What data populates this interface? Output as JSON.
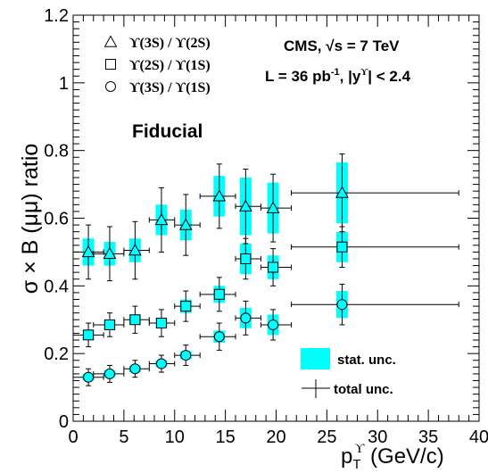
{
  "chart_data": {
    "type": "scatter",
    "annotation_experiment": "CMS, ",
    "annotation_sqrt_s": "√s = 7 TeV",
    "annotation_lumi_prefix": "L = 36 pb",
    "annotation_lumi_sup": "-1",
    "annotation_lumi_suffix": ", |y",
    "annotation_rapidity_sup": "ϒ",
    "annotation_rapidity_cut": "| < 2.4",
    "annotation_region": "Fiducial",
    "ylabel": "σ × B (μμ)  ratio",
    "xlabel_prefix": "p",
    "xlabel_sub": "T",
    "xlabel_sup": "ϒ",
    "xlabel_unit": " (GeV/c)",
    "xlim": [
      0,
      40
    ],
    "ylim": [
      0,
      1.2
    ],
    "xticks": [
      0,
      5,
      10,
      15,
      20,
      25,
      30,
      35,
      40
    ],
    "xtick_labels": [
      "0",
      "5",
      "10",
      "15",
      "20",
      "25",
      "30",
      "35",
      "40"
    ],
    "yticks": [
      0,
      0.2,
      0.4,
      0.6,
      0.8,
      1.0,
      1.2
    ],
    "ytick_labels": [
      "0",
      "0.2",
      "0.4",
      "0.6",
      "0.8",
      "1",
      "1.2"
    ],
    "marker_fill": "#00FFFF",
    "band_color": "#00FFFF",
    "series": [
      {
        "name": "ϒ(3S) / ϒ(2S)",
        "marker": "triangle",
        "points": [
          {
            "x": 1.5,
            "xlo": 0,
            "xhi": 3,
            "y": 0.5,
            "stat": 0.04,
            "tot": 0.08
          },
          {
            "x": 3.6,
            "xlo": 2,
            "xhi": 5,
            "y": 0.495,
            "stat": 0.035,
            "tot": 0.08
          },
          {
            "x": 6.1,
            "xlo": 5,
            "xhi": 7.5,
            "y": 0.505,
            "stat": 0.035,
            "tot": 0.085
          },
          {
            "x": 8.7,
            "xlo": 7.5,
            "xhi": 10,
            "y": 0.595,
            "stat": 0.045,
            "tot": 0.095
          },
          {
            "x": 11.1,
            "xlo": 10,
            "xhi": 12.5,
            "y": 0.58,
            "stat": 0.045,
            "tot": 0.09
          },
          {
            "x": 14.4,
            "xlo": 12.5,
            "xhi": 16,
            "y": 0.665,
            "stat": 0.06,
            "tot": 0.095
          },
          {
            "x": 17,
            "xlo": 16,
            "xhi": 18.5,
            "y": 0.635,
            "stat": 0.085,
            "tot": 0.11
          },
          {
            "x": 19.7,
            "xlo": 18.5,
            "xhi": 21.5,
            "y": 0.63,
            "stat": 0.075,
            "tot": 0.1
          },
          {
            "x": 26.5,
            "xlo": 21.5,
            "xhi": 38,
            "y": 0.675,
            "stat": 0.09,
            "tot": 0.115
          }
        ]
      },
      {
        "name": "ϒ(2S) / ϒ(1S)",
        "marker": "square",
        "points": [
          {
            "x": 1.5,
            "xlo": 0,
            "xhi": 3,
            "y": 0.255,
            "stat": 0.015,
            "tot": 0.035
          },
          {
            "x": 3.6,
            "xlo": 2,
            "xhi": 5,
            "y": 0.285,
            "stat": 0.015,
            "tot": 0.035
          },
          {
            "x": 6.1,
            "xlo": 5,
            "xhi": 7.5,
            "y": 0.3,
            "stat": 0.015,
            "tot": 0.04
          },
          {
            "x": 8.7,
            "xlo": 7.5,
            "xhi": 10,
            "y": 0.29,
            "stat": 0.015,
            "tot": 0.04
          },
          {
            "x": 11.1,
            "xlo": 10,
            "xhi": 12.5,
            "y": 0.34,
            "stat": 0.02,
            "tot": 0.045
          },
          {
            "x": 14.4,
            "xlo": 12.5,
            "xhi": 16,
            "y": 0.375,
            "stat": 0.025,
            "tot": 0.05
          },
          {
            "x": 17,
            "xlo": 16,
            "xhi": 18.5,
            "y": 0.48,
            "stat": 0.045,
            "tot": 0.06
          },
          {
            "x": 19.7,
            "xlo": 18.5,
            "xhi": 21.5,
            "y": 0.455,
            "stat": 0.035,
            "tot": 0.055
          },
          {
            "x": 26.5,
            "xlo": 21.5,
            "xhi": 38,
            "y": 0.515,
            "stat": 0.045,
            "tot": 0.06
          }
        ]
      },
      {
        "name": "ϒ(3S) / ϒ(1S)",
        "marker": "circle",
        "points": [
          {
            "x": 1.5,
            "xlo": 0,
            "xhi": 3,
            "y": 0.13,
            "stat": 0.01,
            "tot": 0.025
          },
          {
            "x": 3.6,
            "xlo": 2,
            "xhi": 5,
            "y": 0.14,
            "stat": 0.01,
            "tot": 0.025
          },
          {
            "x": 6.1,
            "xlo": 5,
            "xhi": 7.5,
            "y": 0.155,
            "stat": 0.01,
            "tot": 0.025
          },
          {
            "x": 8.7,
            "xlo": 7.5,
            "xhi": 10,
            "y": 0.17,
            "stat": 0.01,
            "tot": 0.025
          },
          {
            "x": 11.1,
            "xlo": 10,
            "xhi": 12.5,
            "y": 0.195,
            "stat": 0.012,
            "tot": 0.03
          },
          {
            "x": 14.4,
            "xlo": 12.5,
            "xhi": 16,
            "y": 0.25,
            "stat": 0.018,
            "tot": 0.04
          },
          {
            "x": 17,
            "xlo": 16,
            "xhi": 18.5,
            "y": 0.305,
            "stat": 0.03,
            "tot": 0.05
          },
          {
            "x": 19.7,
            "xlo": 18.5,
            "xhi": 21.5,
            "y": 0.285,
            "stat": 0.03,
            "tot": 0.045
          },
          {
            "x": 26.5,
            "xlo": 21.5,
            "xhi": 38,
            "y": 0.345,
            "stat": 0.04,
            "tot": 0.06
          }
        ]
      }
    ],
    "legend_uncertainty": [
      {
        "label": "stat. unc.",
        "kind": "band"
      },
      {
        "label": "total unc.",
        "kind": "errorbar"
      }
    ]
  }
}
